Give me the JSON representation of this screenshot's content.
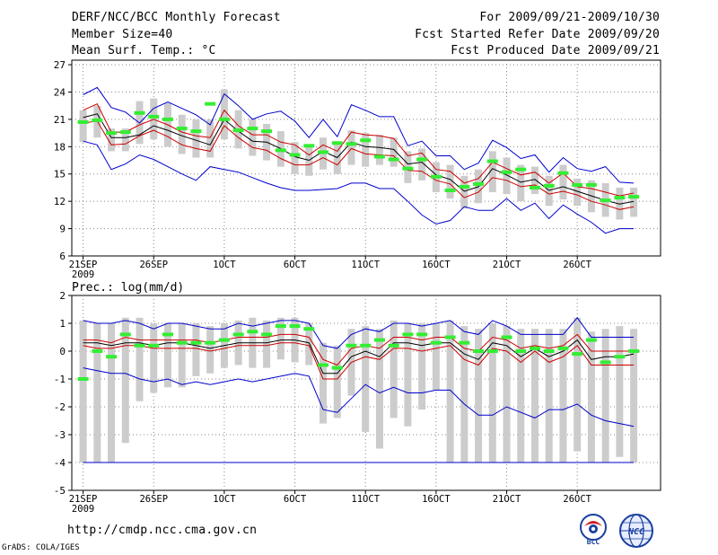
{
  "header": {
    "title": "DERF/NCC/BCC Monthly Forecast",
    "member_size": "Member Size=40",
    "variable_temp": "Mean Surf. Temp.: °C",
    "period": "For 2009/09/21-2009/10/30",
    "fcst_started": "Fcst Started Refer Date 2009/09/20",
    "fcst_produced": "Fcst Produced Date 2009/09/21"
  },
  "footer": {
    "url": "http://cmdp.ncc.cma.gov.cn",
    "credit": "GrADS: COLA/IGES",
    "logo_bcc_text": "BCC",
    "logo_ncc_text": "NCC"
  },
  "colors": {
    "envelope": "#0000cc",
    "spread": "#cc0000",
    "mean": "#000000",
    "observed": "#33ee33",
    "box": "#cccccc",
    "grid": "#888888"
  },
  "chart_data": [
    {
      "type": "line",
      "title": "Mean Surf. Temp.: °C",
      "ylabel": "°C",
      "ylim": [
        6,
        27.5
      ],
      "yticks": [
        "6",
        "9",
        "12",
        "15",
        "18",
        "21",
        "24",
        "27"
      ],
      "xlim": [
        0,
        40
      ],
      "xtick_labels": [
        "21SEP",
        "26SEP",
        "1OCT",
        "6OCT",
        "11OCT",
        "16OCT",
        "21OCT",
        "26OCT"
      ],
      "xtick_days": [
        0,
        5,
        10,
        15,
        20,
        25,
        30,
        35
      ],
      "year_label": "2009",
      "days": [
        0,
        1,
        2,
        3,
        4,
        5,
        6,
        7,
        8,
        9,
        10,
        11,
        12,
        13,
        14,
        15,
        16,
        17,
        18,
        19,
        20,
        21,
        22,
        23,
        24,
        25,
        26,
        27,
        28,
        29,
        30,
        31,
        32,
        33,
        34,
        35,
        36,
        37,
        38,
        39
      ],
      "series": [
        {
          "name": "max",
          "values": [
            23.7,
            24.5,
            22.3,
            21.8,
            20.6,
            22.2,
            22.9,
            22.2,
            21.5,
            20.4,
            23.8,
            22.5,
            21.0,
            21.6,
            21.9,
            20.8,
            19.0,
            21.0,
            19.1,
            22.6,
            22.0,
            21.3,
            21.3,
            18.1,
            18.6,
            17.0,
            17.0,
            15.5,
            16.2,
            18.7,
            17.9,
            16.7,
            17.1,
            15.2,
            16.8,
            15.6,
            15.3,
            15.8,
            14.1,
            14.0
          ]
        },
        {
          "name": "upper",
          "values": [
            22.0,
            22.7,
            19.6,
            19.6,
            20.4,
            21.0,
            20.4,
            19.6,
            19.2,
            19.0,
            22.0,
            20.3,
            19.3,
            19.3,
            18.5,
            18.2,
            17.1,
            18.2,
            17.5,
            19.6,
            19.3,
            19.2,
            18.9,
            17.0,
            17.3,
            15.5,
            15.3,
            14.0,
            14.5,
            16.3,
            15.6,
            14.9,
            15.2,
            14.0,
            15.1,
            13.6,
            13.4,
            13.0,
            12.6,
            12.9
          ]
        },
        {
          "name": "mean",
          "values": [
            21.2,
            21.6,
            19.0,
            19.0,
            19.3,
            20.3,
            19.8,
            19.2,
            18.7,
            18.2,
            21.0,
            19.7,
            18.6,
            18.5,
            17.8,
            16.9,
            16.5,
            17.5,
            16.8,
            18.5,
            18.0,
            17.9,
            17.7,
            16.1,
            16.3,
            14.9,
            14.4,
            13.1,
            13.6,
            15.6,
            14.9,
            14.1,
            14.4,
            13.2,
            13.6,
            13.1,
            12.6,
            12.1,
            11.7,
            12.0
          ]
        },
        {
          "name": "lower",
          "values": [
            20.6,
            20.8,
            18.2,
            18.3,
            19.2,
            19.8,
            19.1,
            18.2,
            17.8,
            17.5,
            20.3,
            19.0,
            17.9,
            17.6,
            16.7,
            16.0,
            16.0,
            16.8,
            16.0,
            17.8,
            17.2,
            17.1,
            17.0,
            15.4,
            15.3,
            14.3,
            13.9,
            12.4,
            13.0,
            14.6,
            14.3,
            13.6,
            13.8,
            12.8,
            13.1,
            12.7,
            12.0,
            11.6,
            11.1,
            11.4
          ]
        },
        {
          "name": "min",
          "values": [
            18.6,
            18.2,
            15.5,
            16.1,
            17.1,
            16.6,
            15.8,
            15.0,
            14.3,
            15.8,
            15.5,
            15.2,
            14.6,
            14.0,
            13.5,
            13.2,
            13.2,
            13.3,
            13.4,
            14.0,
            14.0,
            13.4,
            13.4,
            12.0,
            10.5,
            9.5,
            9.9,
            11.4,
            11.0,
            11.0,
            12.3,
            11.0,
            11.8,
            10.1,
            11.6,
            10.6,
            9.7,
            8.5,
            9.0,
            9.0
          ]
        },
        {
          "name": "observed",
          "values": [
            20.7,
            20.9,
            19.5,
            19.6,
            21.7,
            21.3,
            21.0,
            20.0,
            19.7,
            22.7,
            21.0,
            19.8,
            20.0,
            19.7,
            17.6,
            17.1,
            18.1,
            17.4,
            18.4,
            18.3,
            18.7,
            16.9,
            16.6,
            15.6,
            16.6,
            14.7,
            13.2,
            13.6,
            13.9,
            16.4,
            15.2,
            15.5,
            13.5,
            13.7,
            15.1,
            13.8,
            13.8,
            12.1,
            12.4,
            12.5
          ]
        }
      ],
      "box_low": [
        18.5,
        19.0,
        17.5,
        17.5,
        18.3,
        18.8,
        18.0,
        17.2,
        16.8,
        16.8,
        18.8,
        17.8,
        17.0,
        16.5,
        15.8,
        15.0,
        14.8,
        15.5,
        15.0,
        16.0,
        15.8,
        16.0,
        15.8,
        14.0,
        14.3,
        13.0,
        12.3,
        11.2,
        11.8,
        13.0,
        12.8,
        12.0,
        12.8,
        11.5,
        12.2,
        11.5,
        10.8,
        10.3,
        10.0,
        10.3
      ],
      "box_high": [
        22.0,
        22.5,
        20.0,
        20.0,
        23.0,
        23.3,
        22.8,
        21.5,
        21.0,
        21.0,
        24.3,
        22.0,
        21.0,
        20.5,
        19.7,
        18.5,
        18.0,
        19.0,
        18.5,
        19.8,
        19.5,
        19.3,
        19.0,
        17.5,
        17.8,
        16.3,
        16.0,
        14.8,
        15.5,
        17.5,
        16.8,
        16.0,
        15.8,
        14.8,
        16.0,
        14.5,
        14.3,
        14.0,
        13.5,
        13.5
      ]
    },
    {
      "type": "line",
      "title": "Prec.: log(mm/d)",
      "ylabel": "log(mm/d)",
      "ylim": [
        -5,
        2
      ],
      "yticks": [
        "-5",
        "-4",
        "-3",
        "-2",
        "-1",
        "0",
        "1",
        "2"
      ],
      "xlim": [
        0,
        40
      ],
      "xtick_labels": [
        "21SEP",
        "26SEP",
        "1OCT",
        "6OCT",
        "11OCT",
        "16OCT",
        "21OCT",
        "26OCT"
      ],
      "xtick_days": [
        0,
        5,
        10,
        15,
        20,
        25,
        30,
        35
      ],
      "year_label": "2009",
      "days": [
        0,
        1,
        2,
        3,
        4,
        5,
        6,
        7,
        8,
        9,
        10,
        11,
        12,
        13,
        14,
        15,
        16,
        17,
        18,
        19,
        20,
        21,
        22,
        23,
        24,
        25,
        26,
        27,
        28,
        29,
        30,
        31,
        32,
        33,
        34,
        35,
        36,
        37,
        38,
        39
      ],
      "series": [
        {
          "name": "max",
          "values": [
            1.1,
            1.0,
            1.0,
            1.1,
            1.0,
            0.8,
            1.0,
            1.0,
            0.9,
            0.8,
            0.8,
            1.0,
            0.9,
            1.0,
            1.1,
            1.1,
            1.0,
            0.2,
            0.1,
            0.6,
            0.8,
            0.7,
            1.0,
            1.0,
            0.9,
            1.0,
            1.1,
            0.7,
            0.6,
            1.1,
            0.9,
            0.6,
            0.6,
            0.6,
            0.6,
            1.2,
            0.5,
            0.5,
            0.5,
            0.5
          ]
        },
        {
          "name": "upper",
          "values": [
            0.4,
            0.4,
            0.3,
            0.5,
            0.4,
            0.4,
            0.4,
            0.4,
            0.4,
            0.3,
            0.4,
            0.5,
            0.5,
            0.5,
            0.6,
            0.6,
            0.5,
            -0.3,
            -0.5,
            0.1,
            0.2,
            0.1,
            0.5,
            0.5,
            0.4,
            0.5,
            0.5,
            0.1,
            0.0,
            0.5,
            0.4,
            0.1,
            0.2,
            0.1,
            0.2,
            0.6,
            0.0,
            0.0,
            0.0,
            0.0
          ]
        },
        {
          "name": "mean",
          "values": [
            0.3,
            0.3,
            0.2,
            0.3,
            0.3,
            0.2,
            0.3,
            0.3,
            0.2,
            0.1,
            0.2,
            0.3,
            0.3,
            0.3,
            0.4,
            0.4,
            0.3,
            -0.8,
            -0.8,
            -0.2,
            0.0,
            -0.2,
            0.3,
            0.3,
            0.2,
            0.3,
            0.3,
            -0.1,
            -0.3,
            0.3,
            0.2,
            -0.2,
            0.1,
            -0.2,
            0.0,
            0.4,
            -0.3,
            -0.2,
            -0.2,
            -0.1
          ]
        },
        {
          "name": "lower",
          "values": [
            0.2,
            0.1,
            0.1,
            0.2,
            0.2,
            0.1,
            0.1,
            0.1,
            0.1,
            0.0,
            0.1,
            0.2,
            0.2,
            0.2,
            0.3,
            0.3,
            0.2,
            -1.0,
            -1.0,
            -0.4,
            -0.2,
            -0.3,
            0.1,
            0.1,
            0.0,
            0.1,
            0.2,
            -0.3,
            -0.5,
            0.1,
            0.0,
            -0.4,
            0.0,
            -0.4,
            -0.2,
            0.2,
            -0.5,
            -0.5,
            -0.5,
            -0.5
          ]
        },
        {
          "name": "min",
          "values": [
            -0.6,
            -0.7,
            -0.8,
            -0.8,
            -1.0,
            -1.1,
            -1.0,
            -1.2,
            -1.1,
            -1.2,
            -1.1,
            -1.0,
            -1.1,
            -1.0,
            -0.9,
            -0.8,
            -0.9,
            -2.1,
            -2.2,
            -1.7,
            -1.2,
            -1.5,
            -1.3,
            -1.5,
            -1.5,
            -1.4,
            -1.4,
            -1.9,
            -2.3,
            -2.3,
            -2.0,
            -2.2,
            -2.4,
            -2.1,
            -2.1,
            -1.9,
            -2.3,
            -2.5,
            -2.6,
            -2.7
          ]
        },
        {
          "name": "observed",
          "values": [
            -1.0,
            0.0,
            -0.2,
            0.6,
            0.2,
            0.2,
            0.6,
            0.3,
            0.3,
            0.3,
            0.4,
            0.6,
            0.7,
            0.6,
            0.9,
            0.9,
            0.8,
            -0.5,
            -0.6,
            0.2,
            0.2,
            0.4,
            0.2,
            0.6,
            0.6,
            0.3,
            0.5,
            0.3,
            0.0,
            0.0,
            0.5,
            0.0,
            0.1,
            0.0,
            0.1,
            -0.1,
            0.4,
            -0.4,
            -0.2,
            0.0
          ]
        }
      ],
      "box_low": [
        -4.0,
        -4.0,
        -4.0,
        -3.3,
        -1.8,
        -1.5,
        -1.3,
        -1.3,
        -0.9,
        -0.8,
        -0.6,
        -0.5,
        -0.6,
        -0.6,
        -0.3,
        -0.4,
        -0.5,
        -2.6,
        -2.4,
        -1.6,
        -2.9,
        -3.5,
        -2.4,
        -2.7,
        -2.1,
        -1.4,
        -4.0,
        -4.0,
        -4.0,
        -4.0,
        -4.0,
        -4.0,
        -4.0,
        -4.0,
        -4.0,
        -3.6,
        -4.0,
        -4.0,
        -3.8,
        -4.0
      ],
      "box_high": [
        1.1,
        1.0,
        1.0,
        1.2,
        1.2,
        1.0,
        1.0,
        1.0,
        1.0,
        0.9,
        1.0,
        1.1,
        1.2,
        1.1,
        1.2,
        1.2,
        1.0,
        0.3,
        0.2,
        0.8,
        0.9,
        0.8,
        1.1,
        1.0,
        1.0,
        1.0,
        1.1,
        0.9,
        0.8,
        1.0,
        0.9,
        0.8,
        0.8,
        0.8,
        0.8,
        1.2,
        0.7,
        0.8,
        0.9,
        0.8
      ]
    }
  ]
}
